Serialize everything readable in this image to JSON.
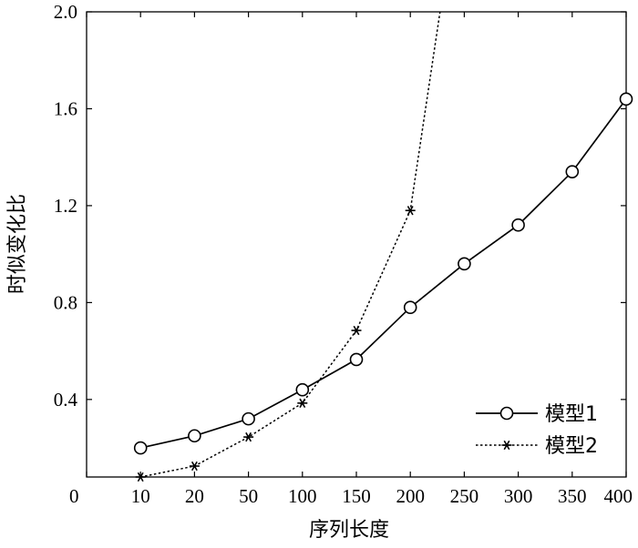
{
  "chart_data": {
    "type": "line",
    "title": "",
    "xlabel": "序列长度",
    "ylabel": "时似变化比",
    "categories": [
      "0",
      "10",
      "20",
      "50",
      "100",
      "150",
      "200",
      "250",
      "300",
      "350",
      "400"
    ],
    "ylim": [
      0.08,
      2.0
    ],
    "yticks": [
      "0.4",
      "0.8",
      "1.2",
      "1.6",
      "2.0"
    ],
    "grid": false,
    "legend_position": "bottom-right",
    "series": [
      {
        "name": "模型1",
        "line_style": "solid",
        "marker": "circle",
        "x": [
          "10",
          "20",
          "50",
          "100",
          "150",
          "200",
          "250",
          "300",
          "350",
          "400"
        ],
        "values": [
          0.2,
          0.25,
          0.32,
          0.44,
          0.565,
          0.78,
          0.96,
          1.12,
          1.34,
          1.64
        ]
      },
      {
        "name": "模型2",
        "line_style": "dotted",
        "marker": "asterisk",
        "x": [
          "10",
          "20",
          "50",
          "100",
          "150",
          "200"
        ],
        "values": [
          0.08,
          0.125,
          0.245,
          0.385,
          0.685,
          1.18
        ],
        "continues_above_ylim_at": "250"
      }
    ]
  }
}
